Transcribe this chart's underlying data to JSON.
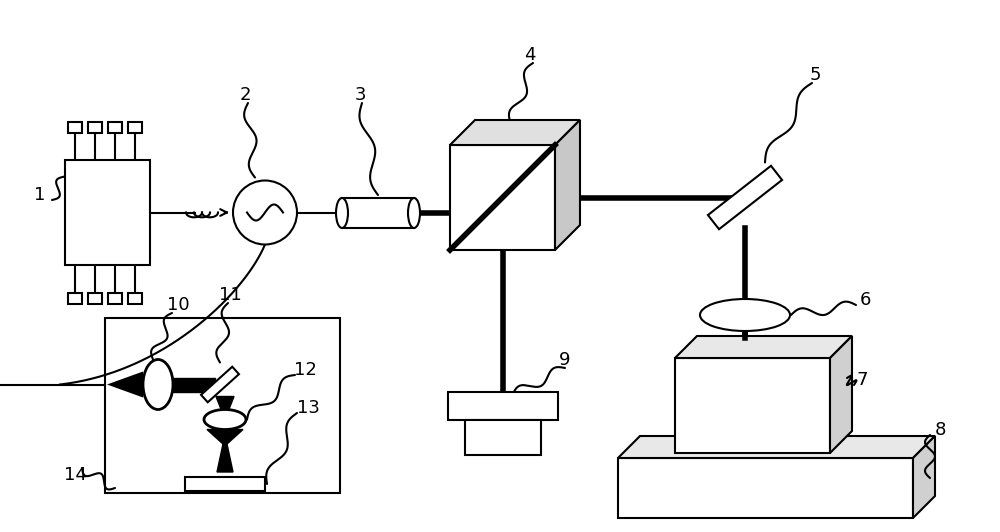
{
  "bg_color": "#ffffff",
  "lc": "#000000",
  "thick_lw": 4.0,
  "thin_lw": 1.5,
  "label_fontsize": 13,
  "figsize": [
    10.0,
    5.32
  ],
  "dpi": 100
}
